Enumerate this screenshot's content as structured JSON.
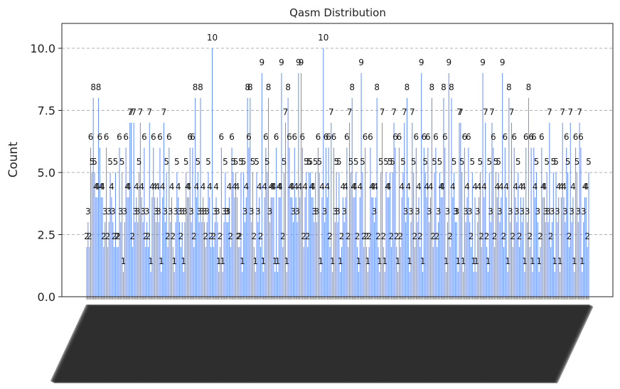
{
  "chart_data": {
    "type": "bar",
    "title": "Qasm Distribution",
    "xlabel": "",
    "ylabel": "Count",
    "ylim": [
      0,
      11
    ],
    "yticks": [
      0.0,
      2.5,
      5.0,
      7.5,
      10.0
    ],
    "ytick_labels": [
      "0.0",
      "2.5",
      "5.0",
      "7.5",
      "10.0"
    ],
    "grid": true,
    "bar_color": "#648fff",
    "categories_note": "x tick labels are rotated, overlapping and illegible",
    "values": [
      2,
      3,
      2,
      6,
      5,
      8,
      5,
      4,
      4,
      8,
      6,
      4,
      4,
      2,
      3,
      6,
      2,
      3,
      5,
      4,
      3,
      2,
      5,
      2,
      2,
      6,
      3,
      5,
      1,
      3,
      6,
      4,
      4,
      7,
      7,
      2,
      7,
      3,
      4,
      3,
      5,
      7,
      4,
      3,
      6,
      2,
      3,
      2,
      7,
      1,
      4,
      6,
      4,
      3,
      4,
      3,
      6,
      1,
      4,
      7,
      3,
      5,
      2,
      6,
      3,
      4,
      2,
      1,
      3,
      5,
      4,
      3,
      2,
      3,
      1,
      3,
      5,
      4,
      4,
      6,
      3,
      6,
      2,
      8,
      4,
      5,
      3,
      8,
      3,
      4,
      3,
      2,
      3,
      5,
      4,
      2,
      10,
      2,
      3,
      4,
      3,
      1,
      2,
      6,
      1,
      3,
      5,
      3,
      3,
      4,
      2,
      6,
      5,
      4,
      5,
      4,
      2,
      2,
      5,
      1,
      5,
      3,
      4,
      8,
      6,
      8,
      3,
      5,
      2,
      1,
      5,
      3,
      4,
      2,
      9,
      1,
      4,
      6,
      5,
      8,
      3,
      4,
      4,
      4,
      1,
      6,
      1,
      4,
      4,
      9,
      2,
      5,
      7,
      1,
      8,
      6,
      4,
      4,
      3,
      6,
      4,
      3,
      9,
      4,
      9,
      6,
      2,
      4,
      5,
      2,
      5,
      5,
      4,
      4,
      3,
      5,
      3,
      6,
      5,
      1,
      4,
      10,
      3,
      6,
      4,
      6,
      2,
      7,
      1,
      6,
      3,
      5,
      3,
      5,
      1,
      2,
      4,
      3,
      4,
      6,
      2,
      7,
      5,
      8,
      4,
      4,
      5,
      2,
      1,
      4,
      9,
      5,
      2,
      6,
      2,
      1,
      2,
      6,
      4,
      4,
      3,
      4,
      8,
      2,
      1,
      5,
      7,
      2,
      1,
      5,
      4,
      4,
      5,
      2,
      5,
      7,
      6,
      2,
      1,
      6,
      2,
      4,
      5,
      7,
      3,
      8,
      4,
      1,
      3,
      7,
      5,
      2,
      6,
      3,
      4,
      2,
      9,
      1,
      6,
      5,
      4,
      6,
      3,
      4,
      8,
      2,
      5,
      6,
      2,
      3,
      5,
      4,
      4,
      8,
      6,
      1,
      3,
      9,
      2,
      8,
      4,
      5,
      3,
      3,
      1,
      7,
      7,
      5,
      1,
      6,
      3,
      4,
      6,
      3,
      2,
      5,
      1,
      4,
      1,
      3,
      4,
      5,
      2,
      9,
      4,
      7,
      2,
      1,
      5,
      3,
      7,
      6,
      2,
      5,
      4,
      5,
      3,
      4,
      9,
      2,
      6,
      4,
      1,
      8,
      3,
      7,
      2,
      6,
      4,
      3,
      5,
      2,
      4,
      3,
      4,
      1,
      6,
      3,
      8,
      2,
      6,
      1,
      6,
      4,
      5,
      3,
      1,
      2,
      6,
      4,
      4,
      3,
      5,
      3,
      7,
      2,
      3,
      5,
      1,
      5,
      3,
      4,
      1,
      4,
      7,
      4,
      3,
      6,
      5,
      2,
      7,
      3,
      4,
      1,
      6,
      5,
      3,
      7,
      6,
      1,
      3,
      4,
      4,
      2,
      5
    ]
  }
}
